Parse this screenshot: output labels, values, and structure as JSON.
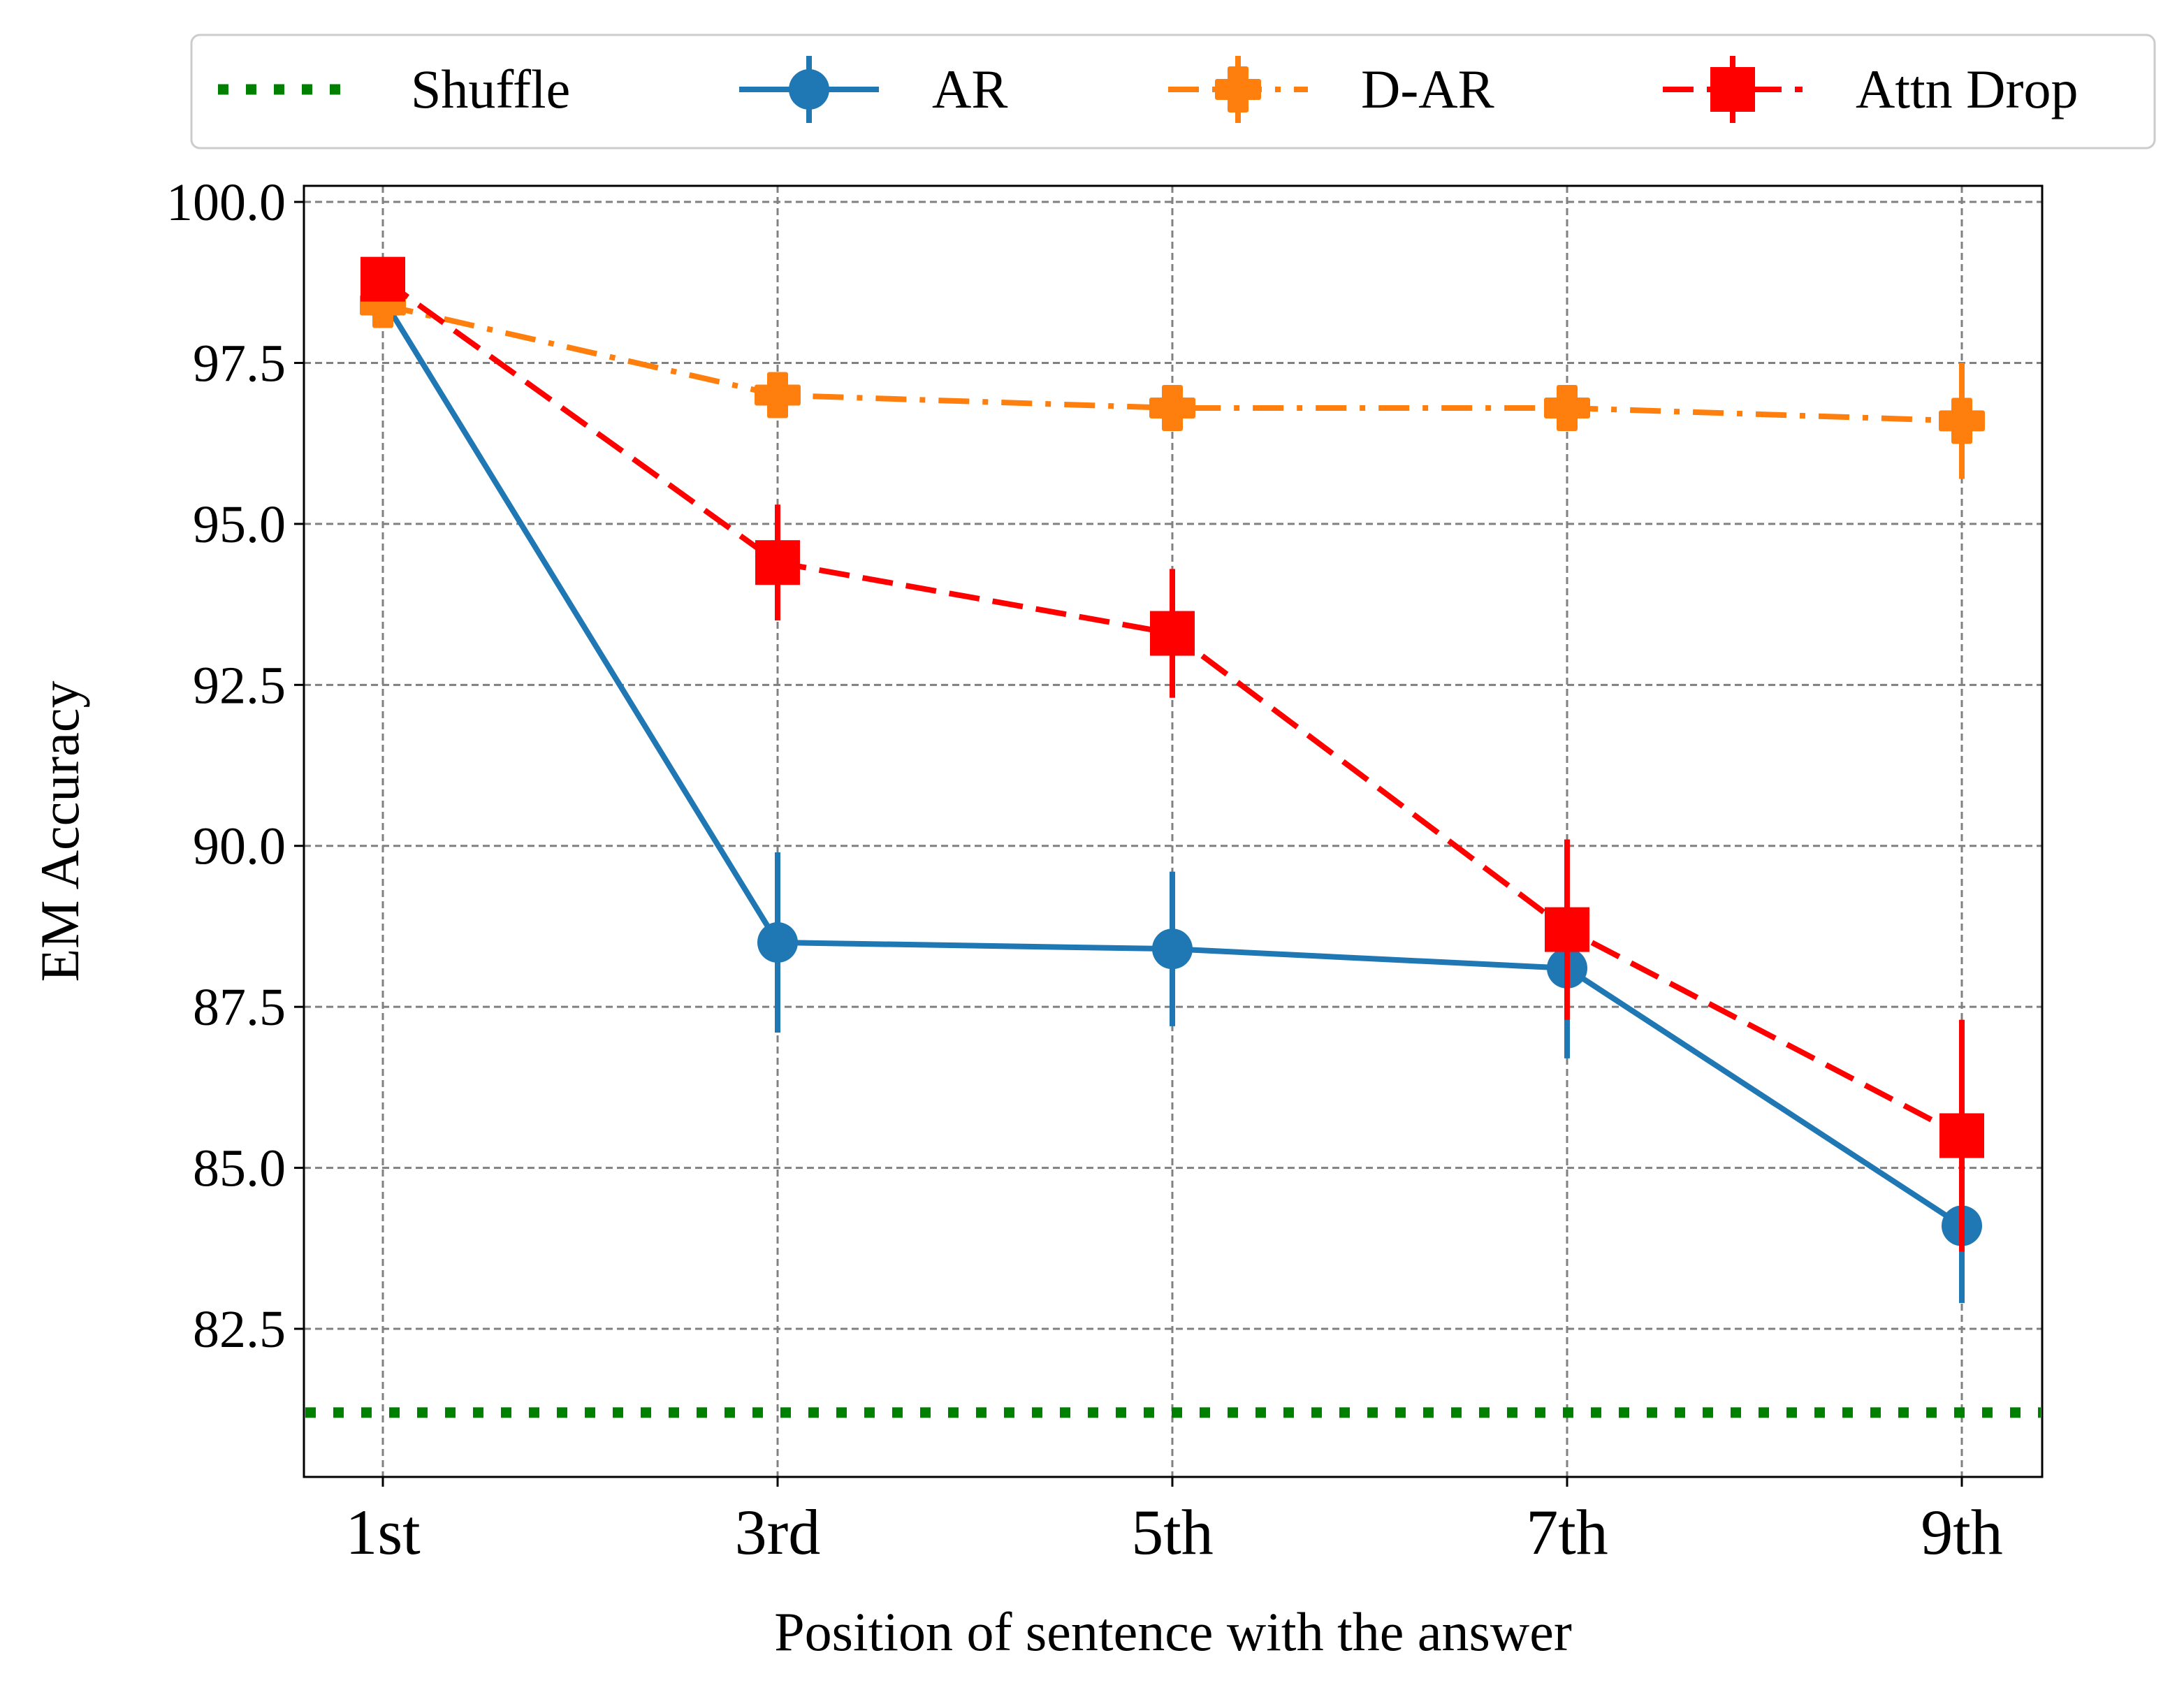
{
  "chart_data": {
    "type": "line",
    "title": "",
    "xlabel": "Position of sentence with the answer",
    "ylabel": "EM Accuracy",
    "categories": [
      "1st",
      "3rd",
      "5th",
      "7th",
      "9th"
    ],
    "ylim": [
      80.2,
      100.25
    ],
    "yticks": [
      "100.0",
      "97.5",
      "95.0",
      "92.5",
      "90.0",
      "87.5",
      "85.0",
      "82.5"
    ],
    "grid": true,
    "legend_position": "top, outside plot",
    "series": [
      {
        "name": "Shuffle",
        "type": "hline",
        "color": "#008000",
        "style": "dotted",
        "value": 81.2
      },
      {
        "name": "AR",
        "color": "#1f77b4",
        "style": "solid",
        "marker": "circle",
        "values": [
          98.5,
          88.5,
          88.4,
          88.1,
          84.1
        ],
        "errors": [
          0.0,
          1.4,
          1.2,
          1.4,
          1.2
        ]
      },
      {
        "name": "D-AR",
        "color": "#ff7f0e",
        "style": "dashdot",
        "marker": "plus-filled",
        "values": [
          98.4,
          97.0,
          96.8,
          96.8,
          96.6
        ],
        "errors": [
          0.0,
          0.1,
          0.1,
          0.2,
          0.9
        ]
      },
      {
        "name": "Attn Drop",
        "color": "#ff0000",
        "style": "dashed",
        "marker": "square",
        "values": [
          98.8,
          94.4,
          93.3,
          88.7,
          85.5
        ],
        "errors": [
          0.3,
          0.9,
          1.0,
          1.4,
          1.8
        ]
      }
    ]
  }
}
